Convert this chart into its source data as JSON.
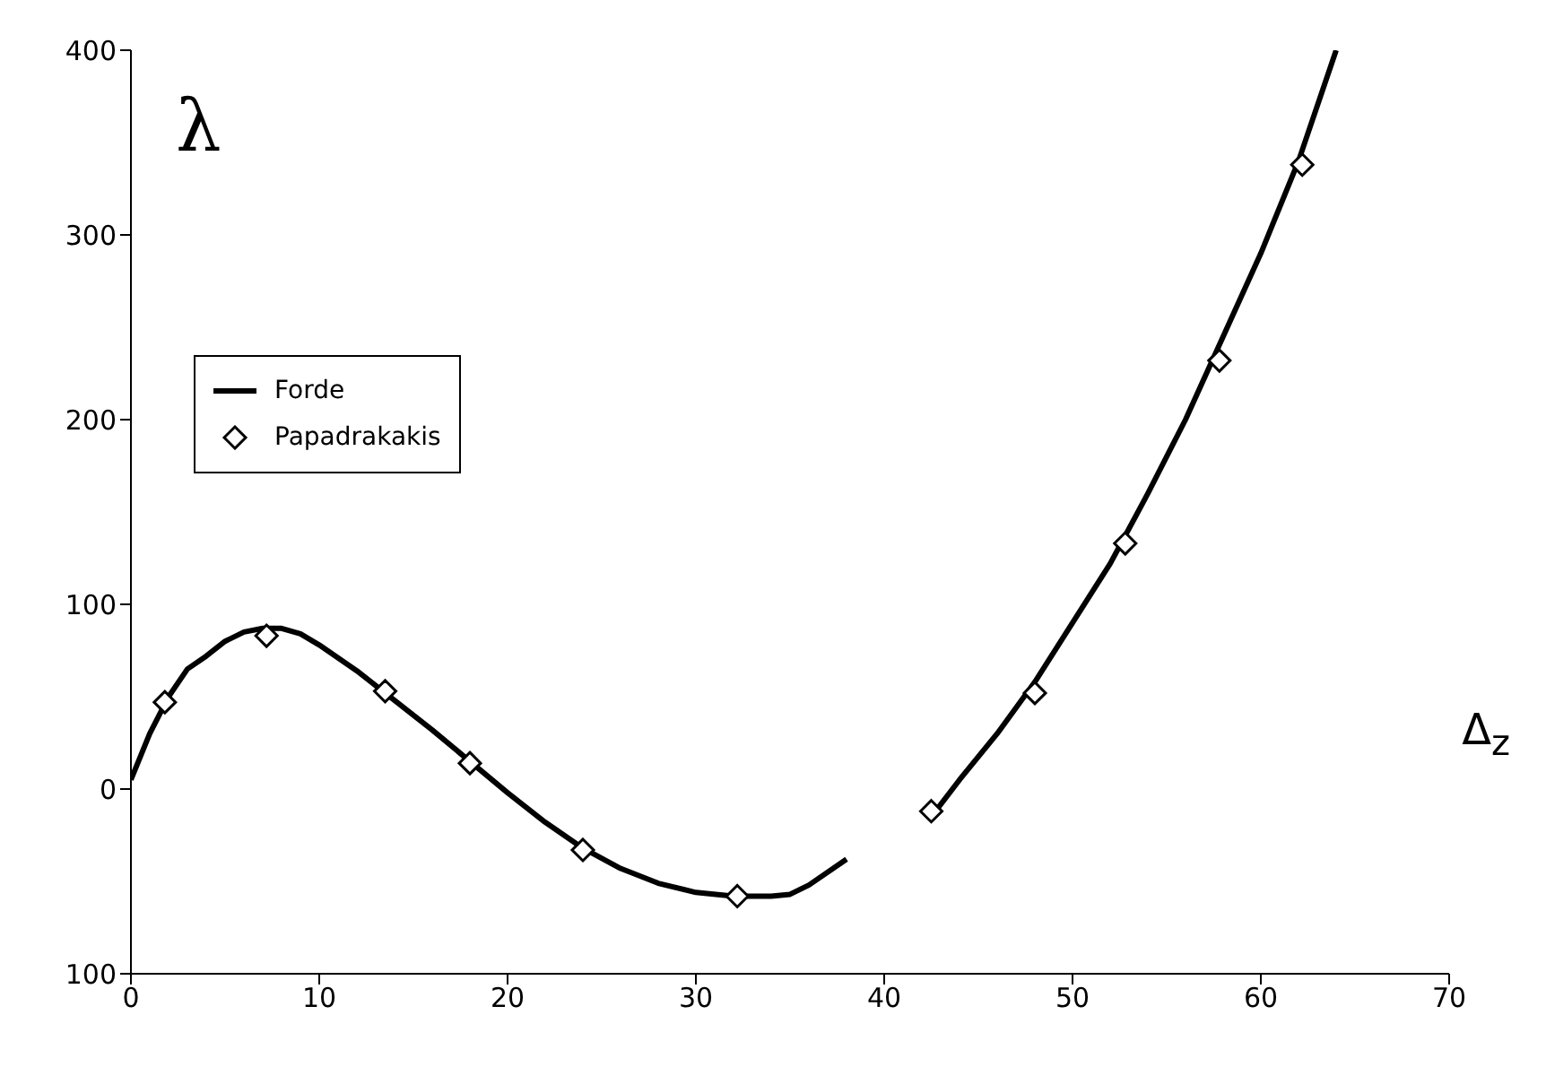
{
  "chart_data": {
    "type": "line",
    "xlabel": "Δ$_{z}$",
    "ylabel": "λ",
    "xlim": [
      0,
      70
    ],
    "xticks": [
      0,
      10,
      20,
      30,
      40,
      50,
      60,
      70
    ],
    "ylim": [
      -100,
      400
    ],
    "yticks": [
      {
        "value": -100,
        "label": "100"
      },
      0,
      100,
      200,
      300,
      400
    ],
    "grid": false,
    "legend": "top left",
    "series": [
      {
        "name": "Forde",
        "type": "line",
        "color": "#000000",
        "marker": "none",
        "line_style": "solid",
        "x": [
          0,
          1,
          2,
          3,
          4,
          5,
          6,
          7,
          8,
          9,
          10,
          12,
          14,
          16,
          18,
          20,
          22,
          24,
          26,
          28,
          30,
          32,
          34,
          35,
          36,
          38,
          40,
          42.5,
          44,
          46,
          48,
          50,
          52,
          54,
          56,
          58,
          60,
          62,
          64
        ],
        "values": [
          5,
          30,
          50,
          65,
          72,
          80,
          85,
          87,
          87,
          84,
          78,
          64,
          48,
          32,
          15,
          -2,
          -18,
          -32,
          -43,
          -51,
          -56,
          -58,
          -58,
          -57,
          -52,
          -38,
          null,
          -15,
          5,
          30,
          58,
          90,
          122,
          160,
          200,
          245,
          290,
          340,
          400
        ]
      },
      {
        "name": "Papadrakakis",
        "type": "scatter",
        "color": "#000000",
        "marker": "diamond",
        "x": [
          1.8,
          7.2,
          13.5,
          18,
          24,
          32.2,
          42.5,
          48,
          52.8,
          57.8,
          62.2
        ],
        "values": [
          47,
          83,
          53,
          14,
          -33,
          -58,
          -12,
          52,
          133,
          232,
          338
        ]
      }
    ]
  }
}
